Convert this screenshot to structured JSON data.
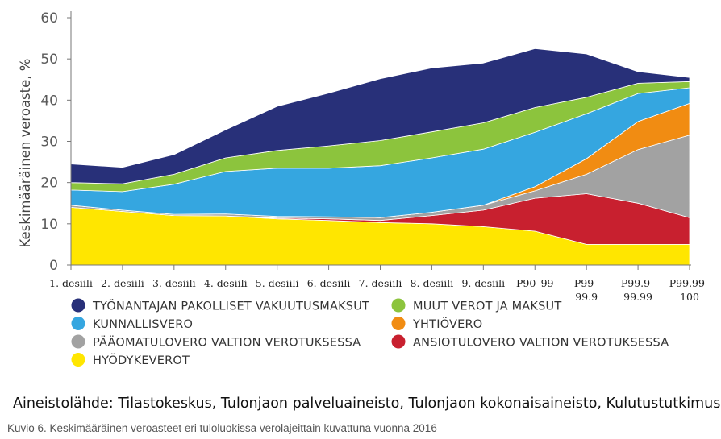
{
  "chart_data": {
    "type": "area",
    "stacked": true,
    "title": "",
    "xlabel": "",
    "ylabel": "Keskimääräinen veroaste, %",
    "ylim": [
      0,
      60
    ],
    "yticks": [
      0,
      10,
      20,
      30,
      40,
      50,
      60
    ],
    "grid": false,
    "legend_position": "bottom",
    "categories": [
      [
        "1. desiili"
      ],
      [
        "2. desiili"
      ],
      [
        "3. desiili"
      ],
      [
        "4. desiili"
      ],
      [
        "5. desiili"
      ],
      [
        "6. desiili"
      ],
      [
        "7. desiili"
      ],
      [
        "8. desiili"
      ],
      [
        "9. desiili"
      ],
      [
        "P90–99"
      ],
      [
        "P99–",
        "99.9"
      ],
      [
        "P99.9–",
        "99.99"
      ],
      [
        "P99.99–",
        "100"
      ]
    ],
    "series": [
      {
        "name": "HYÖDYKEVEROT",
        "color": "#ffe600",
        "values": [
          14.0,
          13.0,
          12.0,
          11.9,
          11.2,
          10.8,
          10.3,
          10.0,
          9.3,
          8.2,
          5.0,
          5.0,
          5.0
        ]
      },
      {
        "name": "ANSIOTULOVERO VALTION VEROTUKSESSA",
        "color": "#c8202f",
        "values": [
          0.0,
          0.0,
          0.0,
          0.0,
          0.2,
          0.4,
          0.5,
          2.0,
          4.0,
          8.0,
          12.3,
          10.0,
          6.5
        ]
      },
      {
        "name": "PÄÄOMATULOVERO VALTION VEROTUKSESSA",
        "color": "#a2a2a2",
        "values": [
          0.5,
          0.3,
          0.3,
          0.5,
          0.4,
          0.5,
          0.7,
          0.8,
          1.2,
          1.8,
          4.7,
          13.0,
          20.0
        ]
      },
      {
        "name": "YHTIÖVERO",
        "color": "#f18c12",
        "values": [
          0.0,
          0.0,
          0.0,
          0.0,
          0.0,
          0.0,
          0.0,
          0.0,
          0.0,
          1.0,
          3.8,
          6.8,
          7.7
        ]
      },
      {
        "name": "KUNNALLISVERO",
        "color": "#35a6e0",
        "values": [
          3.7,
          4.5,
          7.3,
          10.3,
          11.7,
          11.8,
          12.6,
          13.2,
          13.6,
          13.2,
          10.9,
          6.8,
          3.8
        ]
      },
      {
        "name": "MUUT VEROT JA MAKSUT",
        "color": "#8cc43d",
        "values": [
          1.8,
          1.9,
          2.4,
          3.3,
          4.3,
          5.4,
          6.1,
          6.3,
          6.4,
          6.0,
          4.0,
          2.5,
          1.5
        ]
      },
      {
        "name": "TYÖNANTAJAN PAKOLLISET VAKUUTUSMAKSUT",
        "color": "#283079",
        "values": [
          4.5,
          4.0,
          4.8,
          6.8,
          10.7,
          12.8,
          15.0,
          15.5,
          14.5,
          14.3,
          10.5,
          2.8,
          1.0
        ]
      }
    ]
  },
  "legend": {
    "left": [
      {
        "label": "TYÖNANTAJAN PAKOLLISET VAKUUTUSMAKSUT",
        "color": "#283079"
      },
      {
        "label": "KUNNALLISVERO",
        "color": "#35a6e0"
      },
      {
        "label": "PÄÄOMATULOVERO VALTION VEROTUKSESSA",
        "color": "#a2a2a2"
      },
      {
        "label": "HYÖDYKEVEROT",
        "color": "#ffe600"
      }
    ],
    "right": [
      {
        "label": "MUUT VEROT JA MAKSUT",
        "color": "#8cc43d"
      },
      {
        "label": "YHTIÖVERO",
        "color": "#f18c12"
      },
      {
        "label": "ANSIOTULOVERO VALTION VEROTUKSESSA",
        "color": "#c8202f"
      }
    ]
  },
  "source_text": "Aineistolähde: Tilastokeskus, Tulonjaon palveluaineisto, Tulonjaon kokonaisaineisto, Kulutustutkimus.",
  "caption_text": "Kuvio 6. Keskimääräinen veroasteet eri tuloluokissa verolajeittain kuvattuna vuonna 2016"
}
